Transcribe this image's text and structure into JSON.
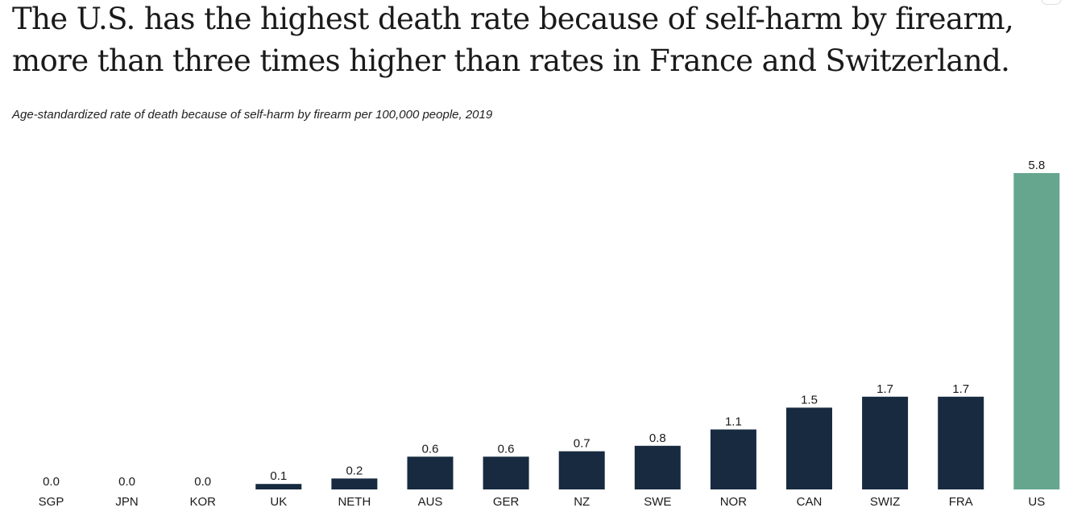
{
  "title": "The U.S. has the highest death rate because of self-harm by firearm, more than three times higher than rates in France and Switzerland.",
  "subtitle": "Age-standardized rate of death because of self-harm by firearm per 100,000 people, 2019",
  "colors": {
    "default_bar": "#172a40",
    "highlight_bar": "#66a68f",
    "text": "#1a1a1a",
    "baseline": "#dddddd"
  },
  "chart_data": {
    "type": "bar",
    "title": "The U.S. has the highest death rate because of self-harm by firearm, more than three times higher than rates in France and Switzerland.",
    "subtitle": "Age-standardized rate of death because of self-harm by firearm per 100,000 people, 2019",
    "xlabel": "",
    "ylabel": "",
    "ylim": [
      0,
      5.8
    ],
    "grid": false,
    "legend": "none",
    "categories": [
      "SGP",
      "JPN",
      "KOR",
      "UK",
      "NETH",
      "AUS",
      "GER",
      "NZ",
      "SWE",
      "NOR",
      "CAN",
      "SWIZ",
      "FRA",
      "US"
    ],
    "values": [
      0.0,
      0.0,
      0.0,
      0.1,
      0.2,
      0.6,
      0.6,
      0.7,
      0.8,
      1.1,
      1.5,
      1.7,
      1.7,
      5.8
    ],
    "value_labels": [
      "0.0",
      "0.0",
      "0.0",
      "0.1",
      "0.2",
      "0.6",
      "0.6",
      "0.7",
      "0.8",
      "1.1",
      "1.5",
      "1.7",
      "1.7",
      "5.8"
    ],
    "highlight": [
      "US"
    ]
  }
}
